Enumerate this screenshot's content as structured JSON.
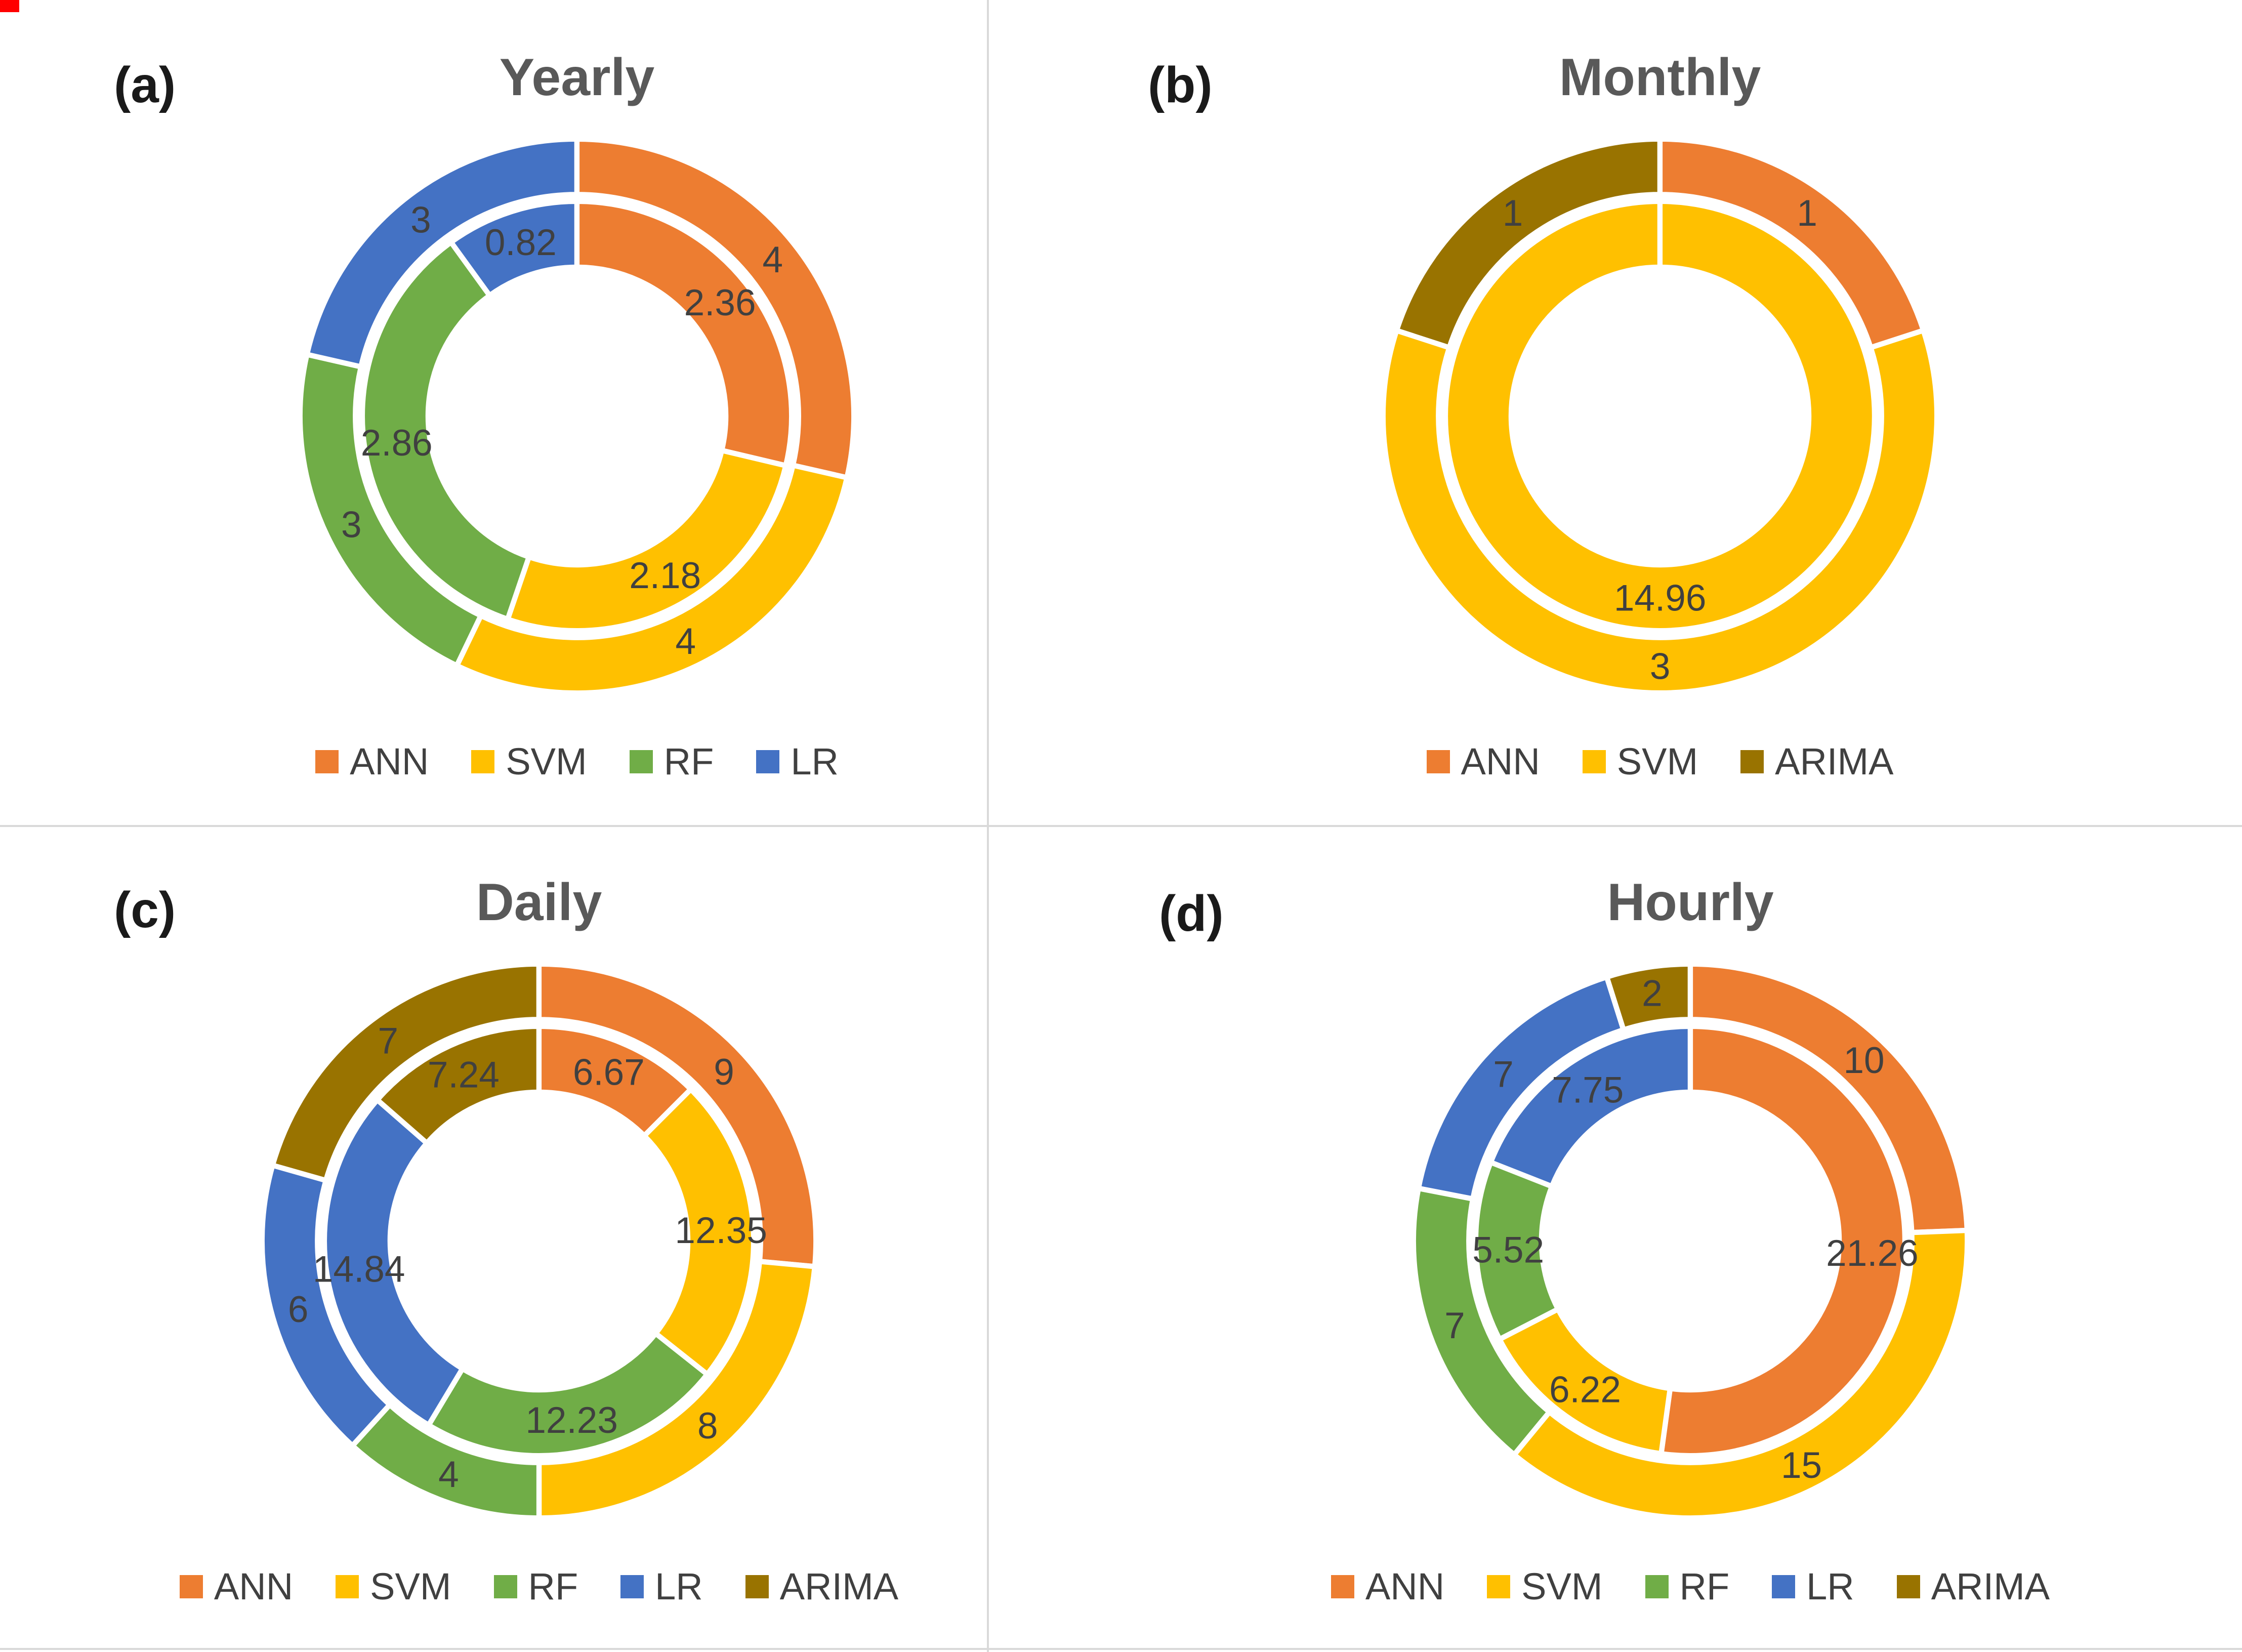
{
  "page": {
    "background": "#ffffff",
    "corner_marker_color": "#ff0000",
    "divider_color": "#d9d9d9"
  },
  "style": {
    "title_color": "#595959",
    "panel_label_color": "#1a1a1a",
    "value_label_color": "#404040",
    "legend_text_color": "#404040",
    "segment_separator_color": "#ffffff"
  },
  "colors": {
    "ANN": "#ED7D31",
    "SVM": "#FFC000",
    "RF": "#70AD47",
    "LR": "#4472C4",
    "ARIMA": "#997300"
  },
  "chart_data": [
    {
      "type": "donut",
      "panel": "(a)",
      "title": "Yearly",
      "legend": [
        "ANN",
        "SVM",
        "RF",
        "LR"
      ],
      "legend_position": "bottom",
      "start_angle": "top",
      "direction": "clockwise",
      "outer_ring": [
        {
          "series": "ANN",
          "value": 4,
          "label": "4"
        },
        {
          "series": "SVM",
          "value": 4,
          "label": "4"
        },
        {
          "series": "RF",
          "value": 3,
          "label": "3"
        },
        {
          "series": "LR",
          "value": 3,
          "label": "3"
        }
      ],
      "inner_ring": [
        {
          "series": "ANN",
          "value": 2.36,
          "label": "2.36"
        },
        {
          "series": "SVM",
          "value": 2.18,
          "label": "2.18"
        },
        {
          "series": "RF",
          "value": 2.86,
          "label": "2.86"
        },
        {
          "series": "LR",
          "value": 0.82,
          "label": "0.82"
        }
      ]
    },
    {
      "type": "donut",
      "panel": "(b)",
      "title": "Monthly",
      "legend": [
        "ANN",
        "SVM",
        "ARIMA"
      ],
      "legend_position": "bottom",
      "start_angle": "top",
      "direction": "clockwise",
      "outer_ring": [
        {
          "series": "ANN",
          "value": 1,
          "label": "1"
        },
        {
          "series": "SVM",
          "value": 3,
          "label": "3"
        },
        {
          "series": "ARIMA",
          "value": 1,
          "label": "1"
        }
      ],
      "inner_ring": [
        {
          "series": "SVM",
          "value": 14.96,
          "label": "14.96"
        }
      ]
    },
    {
      "type": "donut",
      "panel": "(c)",
      "title": "Daily",
      "legend": [
        "ANN",
        "SVM",
        "RF",
        "LR",
        "ARIMA"
      ],
      "legend_position": "bottom",
      "start_angle": "top",
      "direction": "clockwise",
      "outer_ring": [
        {
          "series": "ANN",
          "value": 9,
          "label": "9"
        },
        {
          "series": "SVM",
          "value": 8,
          "label": "8"
        },
        {
          "series": "RF",
          "value": 4,
          "label": "4"
        },
        {
          "series": "LR",
          "value": 6,
          "label": "6"
        },
        {
          "series": "ARIMA",
          "value": 7,
          "label": "7"
        }
      ],
      "inner_ring": [
        {
          "series": "ANN",
          "value": 6.67,
          "label": "6.67"
        },
        {
          "series": "SVM",
          "value": 12.35,
          "label": "12.35"
        },
        {
          "series": "RF",
          "value": 12.23,
          "label": "12.23"
        },
        {
          "series": "LR",
          "value": 14.84,
          "label": "14.84"
        },
        {
          "series": "ARIMA",
          "value": 7.24,
          "label": "7.24"
        }
      ]
    },
    {
      "type": "donut",
      "panel": "(d)",
      "title": "Hourly",
      "legend": [
        "ANN",
        "SVM",
        "RF",
        "LR",
        "ARIMA"
      ],
      "legend_position": "bottom",
      "start_angle": "top",
      "direction": "clockwise",
      "outer_ring": [
        {
          "series": "ANN",
          "value": 10,
          "label": "10"
        },
        {
          "series": "SVM",
          "value": 15,
          "label": "15"
        },
        {
          "series": "RF",
          "value": 7,
          "label": "7"
        },
        {
          "series": "LR",
          "value": 7,
          "label": "7"
        },
        {
          "series": "ARIMA",
          "value": 2,
          "label": "2"
        }
      ],
      "inner_ring": [
        {
          "series": "ANN",
          "value": 21.26,
          "label": "21.26"
        },
        {
          "series": "SVM",
          "value": 6.22,
          "label": "6.22"
        },
        {
          "series": "RF",
          "value": 5.52,
          "label": "5.52"
        },
        {
          "series": "LR",
          "value": 7.75,
          "label": "7.75"
        }
      ]
    }
  ]
}
